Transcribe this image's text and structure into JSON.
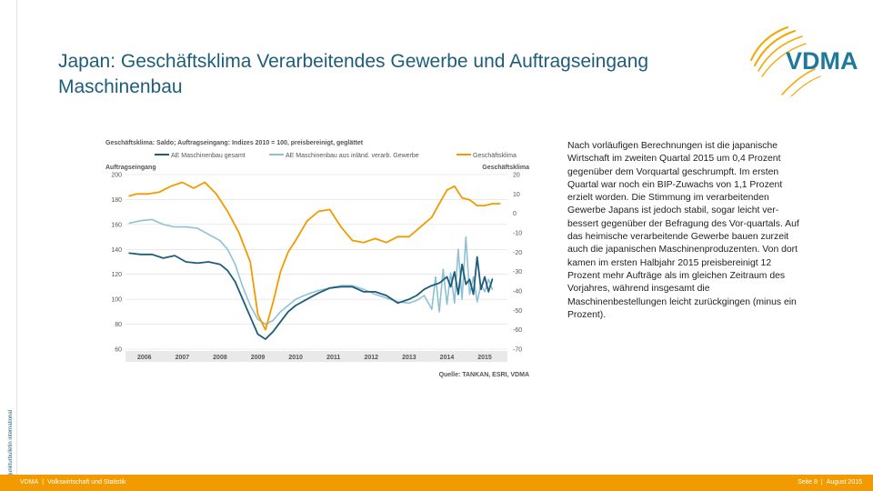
{
  "sidebar": {
    "label": "Konjunkturbulletin international"
  },
  "title": "Japan: Geschäftsklima Verarbeitendes Gewerbe und Auftragseingang Maschinenbau",
  "logo": {
    "text": "VDMA",
    "icon": "vdma-swoosh-logo"
  },
  "colors": {
    "accent_orange": "#F29B00",
    "dark_blue": "#1D5D7A",
    "light_blue": "#8FC1D4"
  },
  "chart_data": {
    "type": "line",
    "title": "Geschäftsklima: Saldo; Auftragseingang: Indizes 2010 = 100, preisbereinigt, geglättet",
    "source": "Quelle: TANKAN, ESRI, VDMA",
    "left_axis": {
      "label": "Auftragseingang",
      "ticks": [
        60,
        80,
        100,
        120,
        140,
        160,
        180,
        200
      ],
      "range": [
        60,
        200
      ]
    },
    "right_axis": {
      "label": "Geschäftsklima",
      "ticks": [
        -70,
        -60,
        -50,
        -40,
        -30,
        -20,
        -10,
        0,
        10,
        20
      ],
      "tick_labels": [
        "-70",
        "-60",
        "-50",
        "-40",
        "-30",
        "-20",
        "-10",
        "0",
        "10",
        "20"
      ],
      "range": [
        -70,
        20
      ]
    },
    "x_axis": {
      "ticks": [
        "2006",
        "2007",
        "2008",
        "2009",
        "2010",
        "2011",
        "2012",
        "2013",
        "2014",
        "2015"
      ],
      "range": [
        2005.5,
        2015.6
      ]
    },
    "legend_placement": "top",
    "grid": true,
    "series": [
      {
        "name": "AE Maschinenbau gesamt",
        "axis": "left",
        "color": "#1D5D7A",
        "x": [
          2005.6,
          2005.9,
          2006.2,
          2006.5,
          2006.8,
          2007.1,
          2007.4,
          2007.7,
          2008.0,
          2008.2,
          2008.4,
          2008.6,
          2008.8,
          2009.0,
          2009.2,
          2009.4,
          2009.6,
          2009.8,
          2010.0,
          2010.3,
          2010.6,
          2010.9,
          2011.2,
          2011.5,
          2011.8,
          2012.1,
          2012.4,
          2012.7,
          2013.0,
          2013.2,
          2013.4,
          2013.6,
          2013.8,
          2014.0,
          2014.1,
          2014.2,
          2014.3,
          2014.4,
          2014.5,
          2014.6,
          2014.7,
          2014.8,
          2014.9,
          2015.0,
          2015.1,
          2015.2
        ],
        "values": [
          137,
          136,
          136,
          133,
          135,
          130,
          129,
          130,
          128,
          123,
          114,
          100,
          86,
          72,
          68,
          74,
          82,
          90,
          95,
          100,
          105,
          109,
          110,
          110,
          106,
          106,
          103,
          97,
          100,
          103,
          108,
          111,
          113,
          118,
          110,
          122,
          104,
          128,
          112,
          116,
          104,
          134,
          108,
          118,
          106,
          116
        ]
      },
      {
        "name": "AE Maschinenbau aus inländ. verarb. Gewerbe",
        "axis": "left",
        "color": "#8FC1D4",
        "x": [
          2005.6,
          2005.9,
          2006.2,
          2006.5,
          2006.8,
          2007.1,
          2007.4,
          2007.7,
          2008.0,
          2008.2,
          2008.4,
          2008.6,
          2008.8,
          2009.0,
          2009.2,
          2009.4,
          2009.6,
          2009.8,
          2010.0,
          2010.3,
          2010.6,
          2010.9,
          2011.2,
          2011.5,
          2011.8,
          2012.1,
          2012.4,
          2012.7,
          2013.0,
          2013.2,
          2013.4,
          2013.6,
          2013.7,
          2013.8,
          2013.9,
          2014.0,
          2014.1,
          2014.2,
          2014.3,
          2014.4,
          2014.5,
          2014.6,
          2014.7,
          2014.8,
          2014.9,
          2015.0,
          2015.1,
          2015.2
        ],
        "values": [
          161,
          163,
          164,
          160,
          158,
          158,
          157,
          152,
          147,
          140,
          128,
          110,
          95,
          84,
          80,
          83,
          90,
          95,
          100,
          104,
          107,
          109,
          111,
          111,
          108,
          104,
          101,
          98,
          97,
          99,
          103,
          92,
          118,
          90,
          124,
          96,
          121,
          97,
          140,
          100,
          150,
          104,
          118,
          98,
          112,
          106,
          116,
          108
        ]
      },
      {
        "name": "Geschäftsklima",
        "axis": "right",
        "color": "#F29B00",
        "x": [
          2005.6,
          2005.8,
          2006.1,
          2006.4,
          2006.7,
          2007.0,
          2007.3,
          2007.6,
          2007.9,
          2008.2,
          2008.5,
          2008.8,
          2009.0,
          2009.2,
          2009.4,
          2009.6,
          2009.8,
          2010.0,
          2010.3,
          2010.6,
          2010.9,
          2011.2,
          2011.5,
          2011.8,
          2012.1,
          2012.4,
          2012.7,
          2013.0,
          2013.3,
          2013.6,
          2013.8,
          2014.0,
          2014.2,
          2014.4,
          2014.6,
          2014.8,
          2015.0,
          2015.2,
          2015.4
        ],
        "values": [
          9,
          10,
          10,
          11,
          14,
          16,
          13,
          16,
          10,
          1,
          -10,
          -25,
          -52,
          -60,
          -46,
          -30,
          -20,
          -14,
          -4,
          1,
          2,
          -7,
          -14,
          -15,
          -13,
          -15,
          -12,
          -12,
          -7,
          -2,
          5,
          12,
          14,
          8,
          7,
          4,
          4,
          5,
          5
        ]
      }
    ]
  },
  "body_text": "Nach vorläufigen Berechnungen ist die japanische Wirtschaft im zweiten Quartal 2015 um 0,4 Prozent gegenüber dem Vorquartal geschrumpft. Im ersten Quartal war noch ein BIP-Zuwachs von 1,1 Prozent erzielt worden. Die Stimmung im verarbeitenden Gewerbe Japans ist jedoch stabil, sogar leicht ver-bessert gegenüber der Befragung des Vor-quartals. Auf das heimische verarbeitende Gewerbe bauen zurzeit auch die japanischen Maschinenproduzenten. Von dort kamen im ersten Halbjahr 2015 preisbereinigt 12 Prozent mehr Aufträge als im gleichen Zeitraum des Vorjahres, während insgesamt die Maschinenbestellungen leicht zurückgingen (minus ein Prozent).",
  "footer": {
    "org": "VDMA",
    "department": "Volkswirtschaft und Statistik",
    "page": "Seite 8",
    "date": "August 2015"
  }
}
